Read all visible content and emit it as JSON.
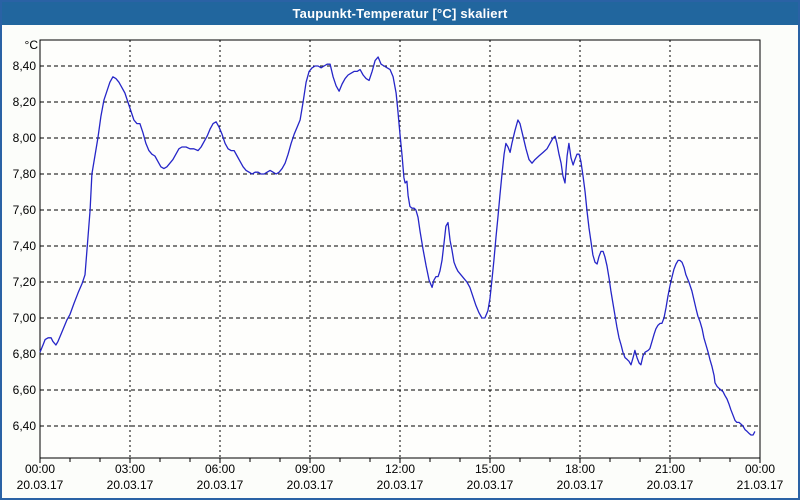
{
  "window": {
    "title": "Taupunkt-Temperatur [°C] skaliert"
  },
  "colors": {
    "titlebar_bg": "#21669E",
    "titlebar_text": "#FFFFFF",
    "window_border": "#2A62A5",
    "background": "#FCFDFA",
    "plot_background": "#FEFEFC",
    "grid": "#000000",
    "axis": "#000000",
    "axis_text": "#000000",
    "line": "#2626C8"
  },
  "chart_data": {
    "type": "line",
    "title": "Taupunkt-Temperatur [°C] skaliert",
    "ylabel": "°C",
    "xlabel": "",
    "grid": "dashed",
    "legend_position": "none",
    "ylim": [
      6.22,
      8.55
    ],
    "xlim_hours": [
      0,
      24
    ],
    "y_ticks": [
      {
        "value": 8.4,
        "label": "8,40"
      },
      {
        "value": 8.2,
        "label": "8,20"
      },
      {
        "value": 8.0,
        "label": "8,00"
      },
      {
        "value": 7.8,
        "label": "7,80"
      },
      {
        "value": 7.6,
        "label": "7,60"
      },
      {
        "value": 7.4,
        "label": "7,40"
      },
      {
        "value": 7.2,
        "label": "7,20"
      },
      {
        "value": 7.0,
        "label": "7,00"
      },
      {
        "value": 6.8,
        "label": "6,80"
      },
      {
        "value": 6.6,
        "label": "6,60"
      },
      {
        "value": 6.4,
        "label": "6,40"
      }
    ],
    "x_ticks": [
      {
        "hour": 0,
        "time": "00:00",
        "date": "20.03.17"
      },
      {
        "hour": 3,
        "time": "03:00",
        "date": "20.03.17"
      },
      {
        "hour": 6,
        "time": "06:00",
        "date": "20.03.17"
      },
      {
        "hour": 9,
        "time": "09:00",
        "date": "20.03.17"
      },
      {
        "hour": 12,
        "time": "12:00",
        "date": "20.03.17"
      },
      {
        "hour": 15,
        "time": "15:00",
        "date": "20.03.17"
      },
      {
        "hour": 18,
        "time": "18:00",
        "date": "20.03.17"
      },
      {
        "hour": 21,
        "time": "21:00",
        "date": "20.03.17"
      },
      {
        "hour": 24,
        "time": "00:00",
        "date": "21.03.17"
      }
    ],
    "minor_x_tick_every_hours": 1,
    "series": [
      {
        "name": "Taupunkt-Temperatur skaliert",
        "color": "#2626C8",
        "points": [
          [
            0.0,
            6.81
          ],
          [
            0.1,
            6.85
          ],
          [
            0.17,
            6.88
          ],
          [
            0.27,
            6.89
          ],
          [
            0.37,
            6.89
          ],
          [
            0.43,
            6.87
          ],
          [
            0.53,
            6.85
          ],
          [
            0.6,
            6.87
          ],
          [
            0.7,
            6.91
          ],
          [
            0.8,
            6.95
          ],
          [
            0.9,
            6.99
          ],
          [
            1.0,
            7.02
          ],
          [
            1.13,
            7.08
          ],
          [
            1.27,
            7.14
          ],
          [
            1.4,
            7.19
          ],
          [
            1.5,
            7.24
          ],
          [
            1.6,
            7.45
          ],
          [
            1.67,
            7.6
          ],
          [
            1.73,
            7.8
          ],
          [
            1.83,
            7.9
          ],
          [
            1.93,
            8.0
          ],
          [
            2.03,
            8.12
          ],
          [
            2.13,
            8.21
          ],
          [
            2.23,
            8.26
          ],
          [
            2.33,
            8.31
          ],
          [
            2.43,
            8.34
          ],
          [
            2.53,
            8.33
          ],
          [
            2.63,
            8.31
          ],
          [
            2.73,
            8.28
          ],
          [
            2.83,
            8.25
          ],
          [
            2.93,
            8.2
          ],
          [
            3.03,
            8.15
          ],
          [
            3.13,
            8.1
          ],
          [
            3.23,
            8.08
          ],
          [
            3.33,
            8.08
          ],
          [
            3.43,
            8.03
          ],
          [
            3.53,
            7.97
          ],
          [
            3.63,
            7.93
          ],
          [
            3.73,
            7.91
          ],
          [
            3.83,
            7.9
          ],
          [
            3.93,
            7.87
          ],
          [
            4.03,
            7.84
          ],
          [
            4.13,
            7.83
          ],
          [
            4.23,
            7.84
          ],
          [
            4.33,
            7.86
          ],
          [
            4.43,
            7.88
          ],
          [
            4.53,
            7.91
          ],
          [
            4.63,
            7.94
          ],
          [
            4.73,
            7.95
          ],
          [
            4.87,
            7.95
          ],
          [
            5.0,
            7.94
          ],
          [
            5.13,
            7.94
          ],
          [
            5.27,
            7.93
          ],
          [
            5.37,
            7.95
          ],
          [
            5.47,
            7.98
          ],
          [
            5.57,
            8.01
          ],
          [
            5.67,
            8.05
          ],
          [
            5.77,
            8.08
          ],
          [
            5.87,
            8.09
          ],
          [
            5.97,
            8.06
          ],
          [
            6.07,
            8.02
          ],
          [
            6.17,
            7.97
          ],
          [
            6.27,
            7.94
          ],
          [
            6.37,
            7.93
          ],
          [
            6.47,
            7.93
          ],
          [
            6.57,
            7.9
          ],
          [
            6.67,
            7.87
          ],
          [
            6.77,
            7.84
          ],
          [
            6.87,
            7.82
          ],
          [
            6.97,
            7.81
          ],
          [
            7.07,
            7.8
          ],
          [
            7.17,
            7.81
          ],
          [
            7.27,
            7.81
          ],
          [
            7.37,
            7.8
          ],
          [
            7.47,
            7.8
          ],
          [
            7.57,
            7.81
          ],
          [
            7.67,
            7.82
          ],
          [
            7.77,
            7.81
          ],
          [
            7.87,
            7.8
          ],
          [
            7.97,
            7.81
          ],
          [
            8.07,
            7.83
          ],
          [
            8.17,
            7.86
          ],
          [
            8.27,
            7.91
          ],
          [
            8.37,
            7.97
          ],
          [
            8.47,
            8.02
          ],
          [
            8.57,
            8.06
          ],
          [
            8.67,
            8.1
          ],
          [
            8.77,
            8.2
          ],
          [
            8.87,
            8.31
          ],
          [
            8.97,
            8.37
          ],
          [
            9.07,
            8.39
          ],
          [
            9.17,
            8.4
          ],
          [
            9.27,
            8.4
          ],
          [
            9.37,
            8.39
          ],
          [
            9.47,
            8.4
          ],
          [
            9.57,
            8.41
          ],
          [
            9.67,
            8.41
          ],
          [
            9.77,
            8.34
          ],
          [
            9.87,
            8.29
          ],
          [
            9.97,
            8.26
          ],
          [
            10.07,
            8.3
          ],
          [
            10.17,
            8.33
          ],
          [
            10.27,
            8.35
          ],
          [
            10.37,
            8.36
          ],
          [
            10.47,
            8.37
          ],
          [
            10.57,
            8.37
          ],
          [
            10.67,
            8.38
          ],
          [
            10.77,
            8.35
          ],
          [
            10.87,
            8.33
          ],
          [
            10.97,
            8.32
          ],
          [
            11.07,
            8.37
          ],
          [
            11.17,
            8.43
          ],
          [
            11.27,
            8.45
          ],
          [
            11.37,
            8.41
          ],
          [
            11.47,
            8.4
          ],
          [
            11.57,
            8.39
          ],
          [
            11.67,
            8.38
          ],
          [
            11.77,
            8.34
          ],
          [
            11.87,
            8.25
          ],
          [
            11.93,
            8.15
          ],
          [
            12.0,
            8.02
          ],
          [
            12.07,
            7.9
          ],
          [
            12.13,
            7.78
          ],
          [
            12.17,
            7.75
          ],
          [
            12.23,
            7.76
          ],
          [
            12.27,
            7.68
          ],
          [
            12.33,
            7.62
          ],
          [
            12.4,
            7.61
          ],
          [
            12.47,
            7.61
          ],
          [
            12.53,
            7.6
          ],
          [
            12.6,
            7.56
          ],
          [
            12.67,
            7.48
          ],
          [
            12.77,
            7.38
          ],
          [
            12.87,
            7.29
          ],
          [
            12.97,
            7.21
          ],
          [
            13.07,
            7.17
          ],
          [
            13.13,
            7.21
          ],
          [
            13.2,
            7.23
          ],
          [
            13.27,
            7.23
          ],
          [
            13.33,
            7.26
          ],
          [
            13.4,
            7.32
          ],
          [
            13.47,
            7.42
          ],
          [
            13.53,
            7.51
          ],
          [
            13.6,
            7.53
          ],
          [
            13.67,
            7.43
          ],
          [
            13.73,
            7.38
          ],
          [
            13.8,
            7.31
          ],
          [
            13.87,
            7.28
          ],
          [
            13.93,
            7.26
          ],
          [
            14.03,
            7.24
          ],
          [
            14.13,
            7.22
          ],
          [
            14.23,
            7.2
          ],
          [
            14.33,
            7.17
          ],
          [
            14.43,
            7.12
          ],
          [
            14.53,
            7.07
          ],
          [
            14.63,
            7.03
          ],
          [
            14.73,
            7.0
          ],
          [
            14.83,
            7.0
          ],
          [
            14.93,
            7.04
          ],
          [
            15.0,
            7.11
          ],
          [
            15.07,
            7.22
          ],
          [
            15.13,
            7.32
          ],
          [
            15.2,
            7.45
          ],
          [
            15.27,
            7.57
          ],
          [
            15.33,
            7.68
          ],
          [
            15.4,
            7.8
          ],
          [
            15.47,
            7.91
          ],
          [
            15.53,
            7.97
          ],
          [
            15.6,
            7.95
          ],
          [
            15.67,
            7.92
          ],
          [
            15.73,
            7.97
          ],
          [
            15.83,
            8.04
          ],
          [
            15.93,
            8.1
          ],
          [
            16.0,
            8.08
          ],
          [
            16.1,
            8.01
          ],
          [
            16.2,
            7.94
          ],
          [
            16.3,
            7.88
          ],
          [
            16.4,
            7.86
          ],
          [
            16.5,
            7.88
          ],
          [
            16.63,
            7.9
          ],
          [
            16.77,
            7.92
          ],
          [
            16.9,
            7.94
          ],
          [
            17.0,
            7.97
          ],
          [
            17.1,
            8.0
          ],
          [
            17.17,
            8.01
          ],
          [
            17.23,
            7.97
          ],
          [
            17.3,
            7.91
          ],
          [
            17.37,
            7.86
          ],
          [
            17.43,
            7.79
          ],
          [
            17.5,
            7.75
          ],
          [
            17.57,
            7.9
          ],
          [
            17.63,
            7.97
          ],
          [
            17.7,
            7.89
          ],
          [
            17.77,
            7.85
          ],
          [
            17.83,
            7.88
          ],
          [
            17.9,
            7.91
          ],
          [
            17.97,
            7.91
          ],
          [
            18.03,
            7.87
          ],
          [
            18.1,
            7.79
          ],
          [
            18.17,
            7.7
          ],
          [
            18.23,
            7.6
          ],
          [
            18.3,
            7.5
          ],
          [
            18.37,
            7.42
          ],
          [
            18.43,
            7.35
          ],
          [
            18.5,
            7.31
          ],
          [
            18.57,
            7.3
          ],
          [
            18.63,
            7.34
          ],
          [
            18.7,
            7.37
          ],
          [
            18.77,
            7.37
          ],
          [
            18.83,
            7.34
          ],
          [
            18.9,
            7.29
          ],
          [
            18.97,
            7.22
          ],
          [
            19.03,
            7.15
          ],
          [
            19.1,
            7.08
          ],
          [
            19.17,
            7.01
          ],
          [
            19.23,
            6.95
          ],
          [
            19.3,
            6.89
          ],
          [
            19.37,
            6.85
          ],
          [
            19.43,
            6.81
          ],
          [
            19.5,
            6.78
          ],
          [
            19.57,
            6.77
          ],
          [
            19.63,
            6.76
          ],
          [
            19.7,
            6.74
          ],
          [
            19.77,
            6.78
          ],
          [
            19.83,
            6.82
          ],
          [
            19.9,
            6.78
          ],
          [
            19.97,
            6.75
          ],
          [
            20.03,
            6.74
          ],
          [
            20.1,
            6.79
          ],
          [
            20.17,
            6.81
          ],
          [
            20.27,
            6.82
          ],
          [
            20.33,
            6.83
          ],
          [
            20.4,
            6.87
          ],
          [
            20.47,
            6.91
          ],
          [
            20.53,
            6.94
          ],
          [
            20.6,
            6.96
          ],
          [
            20.67,
            6.97
          ],
          [
            20.73,
            6.97
          ],
          [
            20.8,
            7.0
          ],
          [
            20.87,
            7.06
          ],
          [
            20.93,
            7.12
          ],
          [
            21.0,
            7.18
          ],
          [
            21.07,
            7.23
          ],
          [
            21.13,
            7.27
          ],
          [
            21.2,
            7.3
          ],
          [
            21.27,
            7.32
          ],
          [
            21.33,
            7.32
          ],
          [
            21.4,
            7.31
          ],
          [
            21.47,
            7.28
          ],
          [
            21.53,
            7.24
          ],
          [
            21.63,
            7.2
          ],
          [
            21.73,
            7.15
          ],
          [
            21.8,
            7.1
          ],
          [
            21.87,
            7.05
          ],
          [
            21.93,
            7.01
          ],
          [
            22.0,
            6.98
          ],
          [
            22.07,
            6.94
          ],
          [
            22.13,
            6.89
          ],
          [
            22.2,
            6.85
          ],
          [
            22.27,
            6.81
          ],
          [
            22.33,
            6.77
          ],
          [
            22.4,
            6.73
          ],
          [
            22.47,
            6.68
          ],
          [
            22.5,
            6.64
          ],
          [
            22.57,
            6.62
          ],
          [
            22.63,
            6.61
          ],
          [
            22.7,
            6.6
          ],
          [
            22.77,
            6.59
          ],
          [
            22.83,
            6.57
          ],
          [
            22.9,
            6.55
          ],
          [
            22.97,
            6.52
          ],
          [
            23.03,
            6.49
          ],
          [
            23.1,
            6.46
          ],
          [
            23.17,
            6.43
          ],
          [
            23.23,
            6.42
          ],
          [
            23.3,
            6.42
          ],
          [
            23.37,
            6.41
          ],
          [
            23.43,
            6.4
          ],
          [
            23.5,
            6.38
          ],
          [
            23.57,
            6.37
          ],
          [
            23.63,
            6.36
          ],
          [
            23.7,
            6.35
          ],
          [
            23.77,
            6.35
          ],
          [
            23.83,
            6.37
          ]
        ]
      }
    ]
  }
}
